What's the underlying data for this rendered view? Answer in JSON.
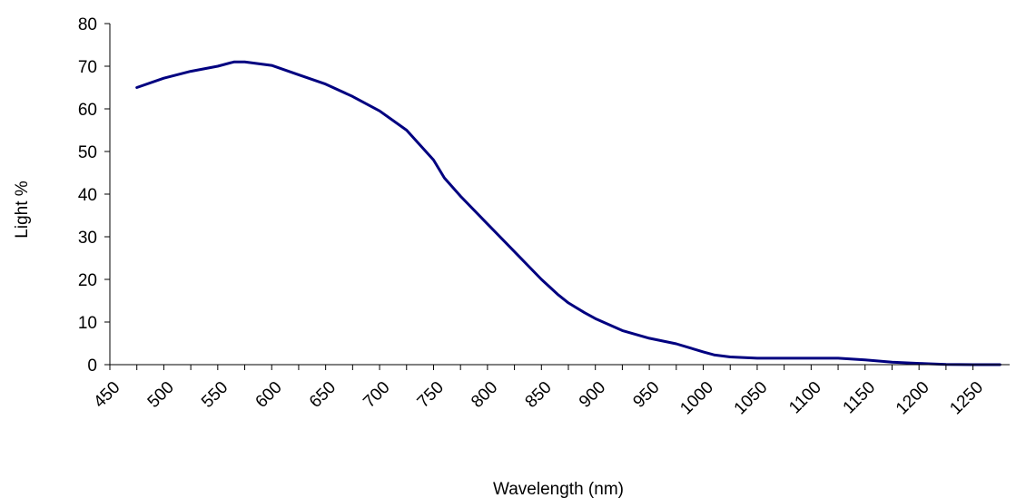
{
  "chart_data": {
    "type": "line",
    "title": "",
    "xlabel": "Wavelength (nm)",
    "ylabel": "Light %",
    "xlim": [
      450,
      1300
    ],
    "ylim": [
      0,
      80
    ],
    "x_ticks": [
      "450",
      "500",
      "550",
      "600",
      "650",
      "700",
      "750",
      "800",
      "850",
      "900",
      "950",
      "1000",
      "1050",
      "1100",
      "1150",
      "1200",
      "1250"
    ],
    "y_ticks": [
      "0",
      "10",
      "20",
      "30",
      "40",
      "50",
      "60",
      "70",
      "80"
    ],
    "grid": false,
    "legend": "none",
    "line_color": "#000080",
    "series": [
      {
        "x": [
          475,
          500,
          525,
          550,
          565,
          575,
          600,
          625,
          650,
          675,
          700,
          725,
          750,
          760,
          775,
          800,
          825,
          850,
          865,
          875,
          890,
          900,
          925,
          950,
          975,
          1000,
          1010,
          1025,
          1050,
          1075,
          1100,
          1125,
          1150,
          1175,
          1200,
          1225,
          1250,
          1275
        ],
        "y": [
          65,
          67.2,
          68.8,
          70,
          71,
          71,
          70.2,
          68,
          65.8,
          62.9,
          59.5,
          55,
          48,
          43.8,
          39.5,
          33,
          26.5,
          20,
          16.5,
          14.5,
          12.2,
          10.8,
          8,
          6.2,
          4.9,
          3,
          2.3,
          1.8,
          1.5,
          1.5,
          1.5,
          1.5,
          1.1,
          0.6,
          0.3,
          0.05,
          0,
          0
        ]
      }
    ]
  }
}
